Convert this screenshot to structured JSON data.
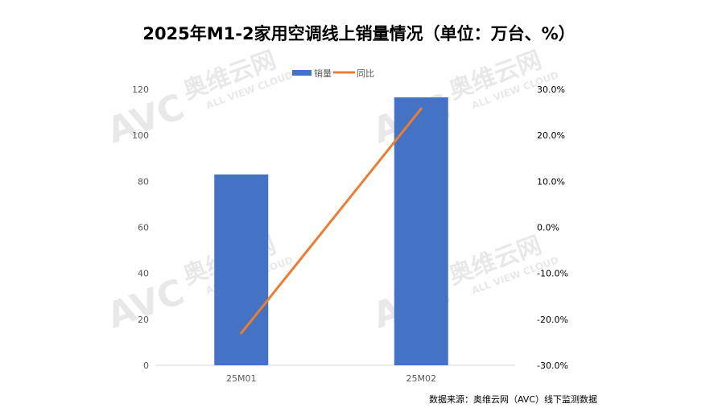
{
  "chart_data": {
    "type": "bar+line",
    "title": "2025年M1-2家用空调线上销量情况（单位：万台、%）",
    "categories": [
      "25M01",
      "25M02"
    ],
    "series": [
      {
        "name": "销量",
        "type": "bar",
        "axis": "left",
        "values": [
          83,
          116.5
        ],
        "color": "#4472C4"
      },
      {
        "name": "同比",
        "type": "line",
        "axis": "right",
        "values": [
          -23.0,
          25.8
        ],
        "color": "#ED7D31"
      }
    ],
    "y_left": {
      "range": [
        0,
        120
      ],
      "ticks": [
        "0",
        "20",
        "40",
        "60",
        "80",
        "100",
        "120"
      ]
    },
    "y_right": {
      "range": [
        -30,
        30
      ],
      "ticks": [
        "-30.0%",
        "-20.0%",
        "-10.0%",
        "0.0%",
        "10.0%",
        "20.0%",
        "30.0%"
      ]
    },
    "legend": "top",
    "grid": false,
    "source": "数据来源：奥维云网（AVC）线下监测数据",
    "watermark": "AVC 奥维云网 ALL VIEW CLOUD"
  }
}
